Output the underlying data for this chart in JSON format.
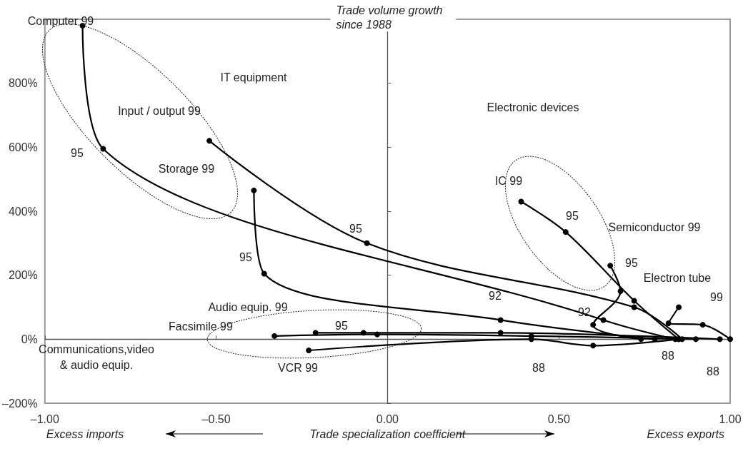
{
  "chart_data": {
    "type": "line",
    "ylabel": "Trade volume growth\nsince 1988",
    "xlabel": "Trade specialization coefficient",
    "xlim": [
      -1,
      1
    ],
    "ylim": [
      -200,
      1000
    ],
    "xticks": [
      {
        "value": -1,
        "label": "–1.00"
      },
      {
        "value": -0.5,
        "label": "–0.50"
      },
      {
        "value": 0,
        "label": "0.00"
      },
      {
        "value": 0.5,
        "label": "0.50"
      },
      {
        "value": 1,
        "label": "1.00"
      }
    ],
    "yticks": [
      {
        "value": -200,
        "label": "–200%"
      },
      {
        "value": 0,
        "label": "0%"
      },
      {
        "value": 200,
        "label": "200%"
      },
      {
        "value": 400,
        "label": "400%"
      },
      {
        "value": 600,
        "label": "600%"
      },
      {
        "value": 800,
        "label": "800%"
      }
    ],
    "marker": "circle",
    "line_style": "solid",
    "series": [
      {
        "color": "#000000",
        "x": [
          0.84,
          0.63,
          -0.83,
          -0.89
        ],
        "values": [
          0,
          60,
          595,
          980
        ]
      },
      {
        "color": "#000000",
        "x": [
          0.86,
          0.72,
          -0.06,
          -0.52
        ],
        "values": [
          0,
          100,
          300,
          620
        ]
      },
      {
        "color": "#000000",
        "x": [
          0.78,
          0.33,
          -0.36,
          -0.39
        ],
        "values": [
          0,
          60,
          205,
          465
        ]
      },
      {
        "color": "#000000",
        "x": [
          0.85,
          0.72,
          0.52,
          0.39
        ],
        "values": [
          0,
          120,
          335,
          430
        ]
      },
      {
        "color": "#000000",
        "x": [
          0.74,
          0.6,
          0.68,
          0.65
        ],
        "values": [
          0,
          45,
          150,
          230
        ]
      },
      {
        "color": "#000000",
        "x": [
          1.0,
          0.92,
          0.82,
          0.85
        ],
        "values": [
          0,
          45,
          50,
          100
        ]
      },
      {
        "color": "#000000",
        "x": [
          0.9,
          0.42,
          -0.03,
          -0.33
        ],
        "values": [
          0,
          10,
          15,
          10
        ]
      },
      {
        "color": "#000000",
        "x": [
          0.97,
          0.33,
          -0.07,
          -0.21
        ],
        "values": [
          0,
          20,
          20,
          20
        ]
      },
      {
        "color": "#000000",
        "x": [
          0.85,
          0.6,
          0.42,
          -0.23
        ],
        "values": [
          0,
          -20,
          0,
          -35
        ]
      }
    ],
    "annotations": [
      "Computer 99",
      "95",
      "IT equipment",
      "Input / output 99",
      "Storage 99",
      "95",
      "Electronic devices",
      "95",
      "IC 99",
      "95",
      "Semiconductor 99",
      "95",
      "Electron tube",
      "99",
      "92",
      "92",
      "Audio equip. 99",
      "Facsimile 99",
      "95",
      "Communications,video\n& audio equip.",
      "VCR 99",
      "88",
      "88",
      "88",
      "Excess imports",
      "Excess exports"
    ]
  }
}
